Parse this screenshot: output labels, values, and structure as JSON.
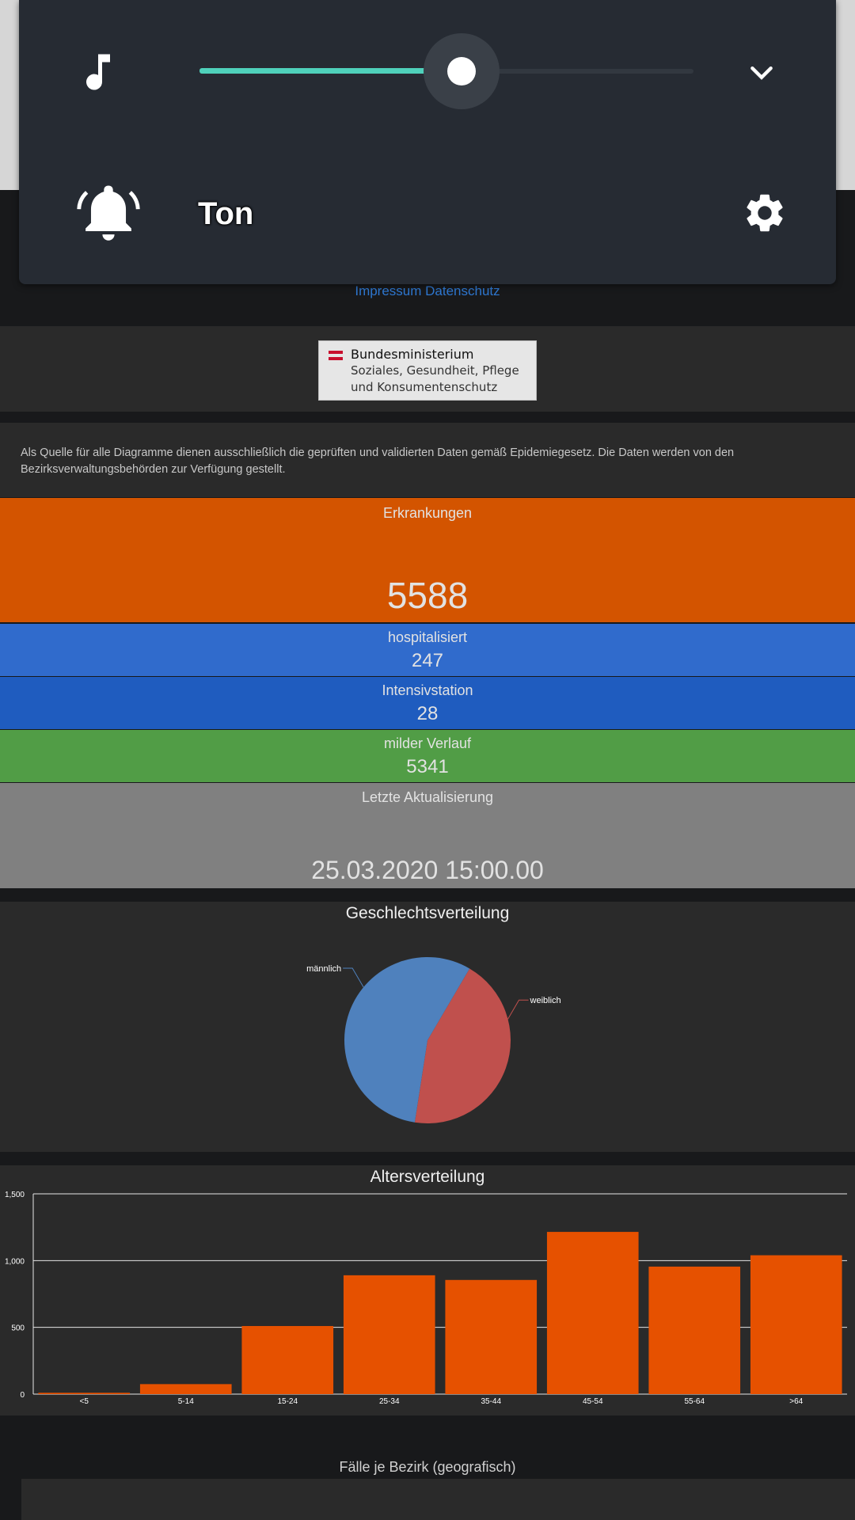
{
  "volume_panel": {
    "slider_level_percent": 53,
    "mode_label": "Ton",
    "icons": {
      "media": "music-note-icon",
      "collapse": "chevron-down-icon",
      "ringer": "bell-ringing-icon",
      "settings": "gear-icon"
    },
    "colors": {
      "panel": "#262b33",
      "accent": "#4fd1bb"
    }
  },
  "footer": {
    "impressum_link": "Impressum Datenschutz"
  },
  "ministry_logo": {
    "line1": "Bundesministerium",
    "line2": "Soziales, Gesundheit, Pflege",
    "line3": "und Konsumentenschutz"
  },
  "source_note": "Als Quelle für alle Diagramme dienen ausschließlich die geprüften und validierten Daten gemäß Epidemiegesetz. Die Daten werden von den Bezirksverwaltungsbehörden zur Verfügung gestellt.",
  "stats": {
    "erkrankungen": {
      "label": "Erkrankungen",
      "value": "5588",
      "color": "#d35400"
    },
    "hospitalisiert": {
      "label": "hospitalisiert",
      "value": "247",
      "color": "#306bcc"
    },
    "intensiv": {
      "label": "Intensivstation",
      "value": "28",
      "color": "#1f5cbf"
    },
    "mild": {
      "label": "milder Verlauf",
      "value": "5341",
      "color": "#519d46"
    },
    "aktualisierung": {
      "label": "Letzte Aktualisierung",
      "value": "25.03.2020 15:00.00",
      "color": "#808080"
    }
  },
  "sections": {
    "faelle_title": "Fälle je Bezirk (geografisch)"
  },
  "chart_data": [
    {
      "type": "pie",
      "title": "Geschlechtsverteilung",
      "categories": [
        "weiblich",
        "männlich"
      ],
      "values": [
        44,
        56
      ],
      "colors": [
        "#c0504d",
        "#4f81bd"
      ]
    },
    {
      "type": "bar",
      "title": "Altersverteilung",
      "categories": [
        "<5",
        "5-14",
        "15-24",
        "25-34",
        "35-44",
        "45-54",
        "55-64",
        ">64"
      ],
      "values": [
        10,
        75,
        510,
        890,
        855,
        1215,
        955,
        1040
      ],
      "ylim": [
        0,
        1500
      ],
      "yticks": [
        "0",
        "500",
        "1,000",
        "1,500"
      ],
      "ytick_values": [
        0,
        500,
        1000,
        1500
      ],
      "grid": true,
      "color": "#e65100"
    }
  ]
}
